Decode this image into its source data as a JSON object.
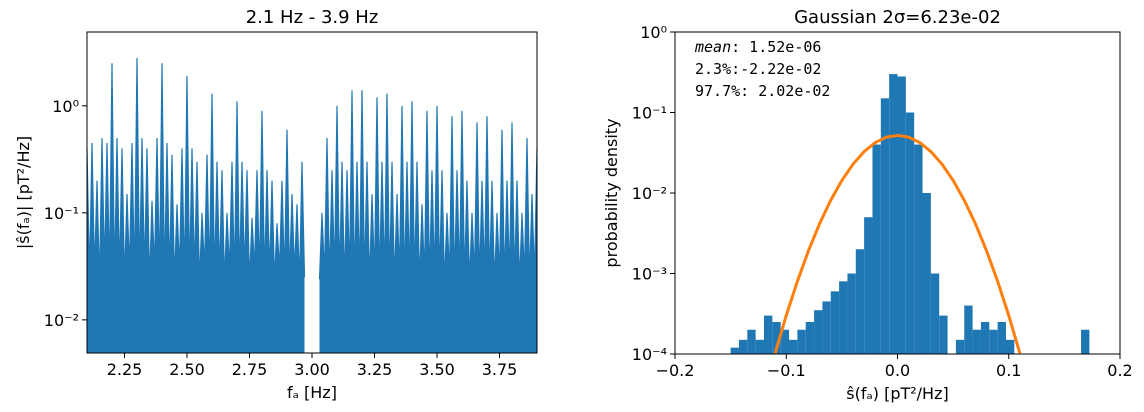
{
  "chart_data": [
    {
      "type": "line",
      "title": "2.1 Hz - 3.9 Hz",
      "xlabel": "fₐ [Hz]",
      "ylabel": "|ŝ(fₐ)| [pT²/Hz]",
      "color": "#1f77b4",
      "fill": true,
      "yscale": "log",
      "xlim": [
        2.1,
        3.9
      ],
      "ylim": [
        0.0049,
        4.9
      ],
      "xticks": [
        2.25,
        {
          "value": 2.5,
          "label": "2.50"
        },
        2.75,
        {
          "value": 3.0,
          "label": "3.00"
        },
        3.25,
        {
          "value": 3.5,
          "label": "3.50"
        },
        3.75
      ],
      "yticks": [
        {
          "value": 0.01,
          "label": "10⁻²"
        },
        {
          "value": 0.1,
          "label": "10⁻¹"
        },
        {
          "value": 1,
          "label": "10⁰"
        }
      ],
      "x": [
        2.1,
        2.11,
        2.12,
        2.13,
        2.14,
        2.15,
        2.16,
        2.17,
        2.18,
        2.19,
        2.2,
        2.21,
        2.22,
        2.23,
        2.24,
        2.25,
        2.26,
        2.27,
        2.28,
        2.29,
        2.3,
        2.31,
        2.32,
        2.33,
        2.34,
        2.35,
        2.36,
        2.37,
        2.38,
        2.39,
        2.4,
        2.41,
        2.42,
        2.43,
        2.44,
        2.45,
        2.46,
        2.47,
        2.48,
        2.49,
        2.5,
        2.51,
        2.52,
        2.53,
        2.54,
        2.55,
        2.56,
        2.57,
        2.58,
        2.59,
        2.6,
        2.61,
        2.62,
        2.63,
        2.64,
        2.65,
        2.66,
        2.67,
        2.68,
        2.69,
        2.7,
        2.71,
        2.72,
        2.73,
        2.74,
        2.75,
        2.76,
        2.77,
        2.78,
        2.79,
        2.8,
        2.81,
        2.82,
        2.83,
        2.84,
        2.85,
        2.86,
        2.87,
        2.88,
        2.89,
        2.9,
        2.91,
        2.92,
        2.93,
        2.94,
        2.95,
        2.96,
        2.97,
        2.98,
        2.99,
        3.0,
        3.01,
        3.02,
        3.03,
        3.04,
        3.05,
        3.06,
        3.07,
        3.08,
        3.09,
        3.1,
        3.11,
        3.12,
        3.13,
        3.14,
        3.15,
        3.16,
        3.17,
        3.18,
        3.19,
        3.2,
        3.21,
        3.22,
        3.23,
        3.24,
        3.25,
        3.26,
        3.27,
        3.28,
        3.29,
        3.3,
        3.31,
        3.32,
        3.33,
        3.34,
        3.35,
        3.36,
        3.37,
        3.38,
        3.39,
        3.4,
        3.41,
        3.42,
        3.43,
        3.44,
        3.45,
        3.46,
        3.47,
        3.48,
        3.49,
        3.5,
        3.51,
        3.52,
        3.53,
        3.54,
        3.55,
        3.56,
        3.57,
        3.58,
        3.59,
        3.6,
        3.61,
        3.62,
        3.63,
        3.64,
        3.65,
        3.66,
        3.67,
        3.68,
        3.69,
        3.7,
        3.71,
        3.72,
        3.73,
        3.74,
        3.75,
        3.76,
        3.77,
        3.78,
        3.79,
        3.8,
        3.81,
        3.82,
        3.83,
        3.84,
        3.85,
        3.86,
        3.87,
        3.88,
        3.89,
        3.9
      ],
      "values": [
        0.4,
        0.025,
        0.45,
        0.028,
        0.2,
        0.022,
        0.5,
        0.03,
        0.45,
        0.026,
        2.5,
        0.024,
        0.5,
        0.027,
        0.4,
        0.023,
        0.15,
        0.029,
        0.45,
        0.025,
        2.8,
        0.025,
        0.5,
        0.028,
        0.4,
        0.022,
        0.13,
        0.03,
        0.5,
        0.026,
        2.5,
        0.024,
        0.45,
        0.027,
        0.35,
        0.023,
        0.12,
        0.029,
        0.4,
        0.025,
        1.9,
        0.025,
        0.4,
        0.028,
        0.3,
        0.022,
        0.1,
        0.03,
        0.35,
        0.026,
        1.3,
        0.024,
        0.3,
        0.027,
        0.25,
        0.023,
        0.1,
        0.029,
        0.3,
        0.025,
        1.1,
        0.025,
        0.3,
        0.028,
        0.25,
        0.022,
        0.09,
        0.03,
        0.25,
        0.026,
        0.9,
        0.024,
        0.25,
        0.027,
        0.2,
        0.023,
        0.08,
        0.029,
        0.2,
        0.025,
        0.6,
        0.025,
        0.15,
        0.028,
        0.12,
        0.022,
        0.3,
        0.025,
        null,
        null,
        null,
        null,
        null,
        0.024,
        0.1,
        0.026,
        0.5,
        0.023,
        0.25,
        0.027,
        1.0,
        0.024,
        0.3,
        0.022,
        0.25,
        0.026,
        1.4,
        0.023,
        0.3,
        0.025,
        1.4,
        0.024,
        0.3,
        0.022,
        0.15,
        0.026,
        1.2,
        0.023,
        0.3,
        0.025,
        1.3,
        0.024,
        0.3,
        0.022,
        0.15,
        0.026,
        1.0,
        0.023,
        0.3,
        0.025,
        1.1,
        0.024,
        0.3,
        0.022,
        0.12,
        0.026,
        0.9,
        0.023,
        0.25,
        0.025,
        1.0,
        0.024,
        0.25,
        0.022,
        0.1,
        0.026,
        0.8,
        0.023,
        0.25,
        0.025,
        0.9,
        0.024,
        0.2,
        0.022,
        0.1,
        0.026,
        0.7,
        0.023,
        0.2,
        0.025,
        0.8,
        0.024,
        0.2,
        0.022,
        0.1,
        0.026,
        0.6,
        0.023,
        0.2,
        0.025,
        0.7,
        0.024,
        0.2,
        0.022,
        0.1,
        0.026,
        0.5,
        0.023,
        0.15,
        0.025,
        0.4
      ]
    },
    {
      "type": "histogram",
      "title": "Gaussian 2σ=6.23e-02",
      "xlabel": "ŝ(fₐ) [pT²/Hz]",
      "ylabel": "probability density",
      "color": "#1f77b4",
      "yscale": "log",
      "xlim": [
        -0.2,
        0.2
      ],
      "ylim": [
        0.0001,
        1
      ],
      "xticks": [
        {
          "value": -0.2,
          "label": "−0.2"
        },
        {
          "value": -0.1,
          "label": "−0.1"
        },
        {
          "value": 0,
          "label": "0.0"
        },
        0.1,
        0.2
      ],
      "yticks": [
        {
          "value": 0.0001,
          "label": "10⁻⁴"
        },
        {
          "value": 0.001,
          "label": "10⁻³"
        },
        {
          "value": 0.01,
          "label": "10⁻²"
        },
        {
          "value": 0.1,
          "label": "10⁻¹"
        },
        {
          "value": 1,
          "label": "10⁰"
        }
      ],
      "annotations": [
        {
          "italic": "mean",
          "text": ": 1.52e-06"
        },
        "2.3%:-2.22e-02",
        "97.7%: 2.02e-02"
      ],
      "bins": [
        -0.15,
        -0.1425,
        -0.135,
        -0.1275,
        -0.12,
        -0.1125,
        -0.105,
        -0.0975,
        -0.09,
        -0.0825,
        -0.075,
        -0.0675,
        -0.06,
        -0.0525,
        -0.045,
        -0.0375,
        -0.03,
        -0.0225,
        -0.015,
        -0.0075,
        0,
        0.0075,
        0.015,
        0.0225,
        0.03,
        0.0375,
        0.045,
        0.0525,
        0.06,
        0.0675,
        0.075,
        0.0825,
        0.09,
        0.0975,
        0.105,
        0.1125,
        0.12,
        0.1275,
        0.135,
        0.1425,
        0.15,
        0.1575,
        0.165,
        0.1725,
        0.18
      ],
      "values": [
        0.00012,
        0.00015,
        0.0002,
        0.00015,
        0.0003,
        0.00025,
        0.0002,
        0.00015,
        0.0002,
        0.00025,
        0.00035,
        0.00045,
        0.0006,
        0.0008,
        0.001,
        0.002,
        0.005,
        0.04,
        0.15,
        0.3,
        0.28,
        0.1,
        0.04,
        0.01,
        0.001,
        0.0003,
        0,
        0.00015,
        0.0004,
        0.0002,
        0.00025,
        0.0002,
        0.00025,
        0.00015,
        0,
        0,
        0,
        0,
        0,
        0,
        0,
        0,
        0.0002,
        0
      ],
      "series": [
        {
          "color": "#ff7f0e",
          "x": [
            -0.11,
            -0.1,
            -0.09,
            -0.08,
            -0.07,
            -0.06,
            -0.05,
            -0.04,
            -0.03,
            -0.02,
            -0.01,
            0,
            0.01,
            0.02,
            0.03,
            0.04,
            0.05,
            0.06,
            0.07,
            0.08,
            0.09,
            0.1,
            0.11
          ],
          "values": [
            0.000102,
            0.000301,
            0.000801,
            0.00192,
            0.00416,
            0.00813,
            0.01434,
            0.0228,
            0.0327,
            0.0423,
            0.0494,
            0.052,
            0.0494,
            0.0423,
            0.0327,
            0.0228,
            0.01434,
            0.00813,
            0.00416,
            0.00192,
            0.000801,
            0.000301,
            0.000102
          ]
        }
      ]
    }
  ]
}
